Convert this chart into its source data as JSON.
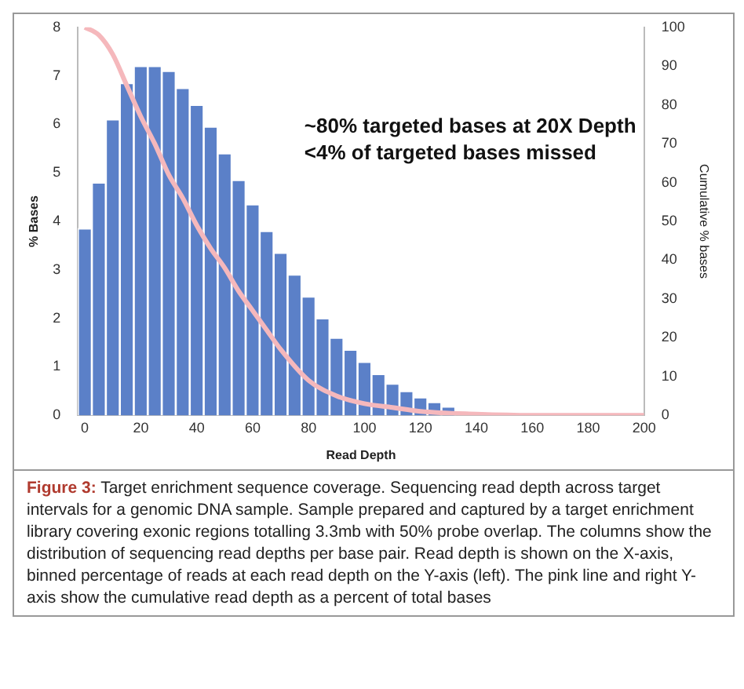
{
  "chart_data": {
    "type": "histogram",
    "xlabel": "Read Depth",
    "ylabel": "% Bases",
    "y2label": "Cumulative % bases",
    "bins": [
      -2.5,
      2.5,
      7.5,
      12.5,
      17.5,
      22.5,
      27.5,
      32.5,
      37.5,
      42.5,
      47.5,
      52.5,
      57.5,
      62.5,
      67.5,
      72.5,
      77.5,
      82.5,
      87.5,
      92.5,
      97.5,
      102.5,
      107.5,
      112.5,
      117.5,
      122.5,
      127.5,
      132.5,
      137.5,
      142.5,
      147.5,
      152.5
    ],
    "series": [
      {
        "color": "#5b80c8",
        "values": [
          3.85,
          4.8,
          6.1,
          6.85,
          7.2,
          7.2,
          7.1,
          6.75,
          6.4,
          5.95,
          5.4,
          4.85,
          4.35,
          3.8,
          3.35,
          2.9,
          2.45,
          2.0,
          1.6,
          1.35,
          1.1,
          0.85,
          0.65,
          0.5,
          0.37,
          0.27,
          0.18,
          null,
          null,
          null,
          null
        ]
      },
      {
        "type": "line",
        "axis": "y2",
        "color": "#f5b8bc",
        "x": [
          0,
          5,
          10,
          15,
          20,
          25,
          30,
          35,
          40,
          45,
          50,
          55,
          60,
          65,
          70,
          80,
          90,
          100,
          110,
          120,
          140,
          160,
          180,
          200
        ],
        "values": [
          100,
          98,
          93,
          85,
          77,
          70,
          62,
          56,
          49,
          43,
          38,
          32,
          27,
          22,
          17,
          9,
          5,
          3,
          2,
          1,
          0.3,
          0,
          0,
          0
        ]
      }
    ],
    "xlim": [
      -2.5,
      200
    ],
    "xticks": [
      0,
      20,
      40,
      60,
      80,
      100,
      120,
      140,
      160,
      180,
      200
    ],
    "ylim": [
      0,
      8
    ],
    "yticks": [
      0,
      1,
      2,
      3,
      4,
      5,
      6,
      7,
      8
    ],
    "y2lim": [
      0,
      100
    ],
    "y2ticks": [
      0,
      10,
      20,
      30,
      40,
      50,
      60,
      70,
      80,
      90,
      100
    ],
    "grid": false,
    "legend": false,
    "marker": "none",
    "line_style": "solid",
    "annotations": [
      "~80% targeted bases at 20X Depth",
      "<4% of targeted bases missed",
      "Figure 3:",
      "Target enrichment sequence coverage. Sequencing read depth across target intervals for a genomic DNA sample. Sample prepared and captured by a target enrichment library covering exonic regions totalling 3.3mb with 50% probe overlap. The columns show the distribution of sequencing read depths per base pair. Read depth is shown on the X-axis, binned percentage of reads at each read depth on the Y-axis (left). The pink line and right Y-axis show the cumulative read depth as a percent of total bases"
    ]
  }
}
